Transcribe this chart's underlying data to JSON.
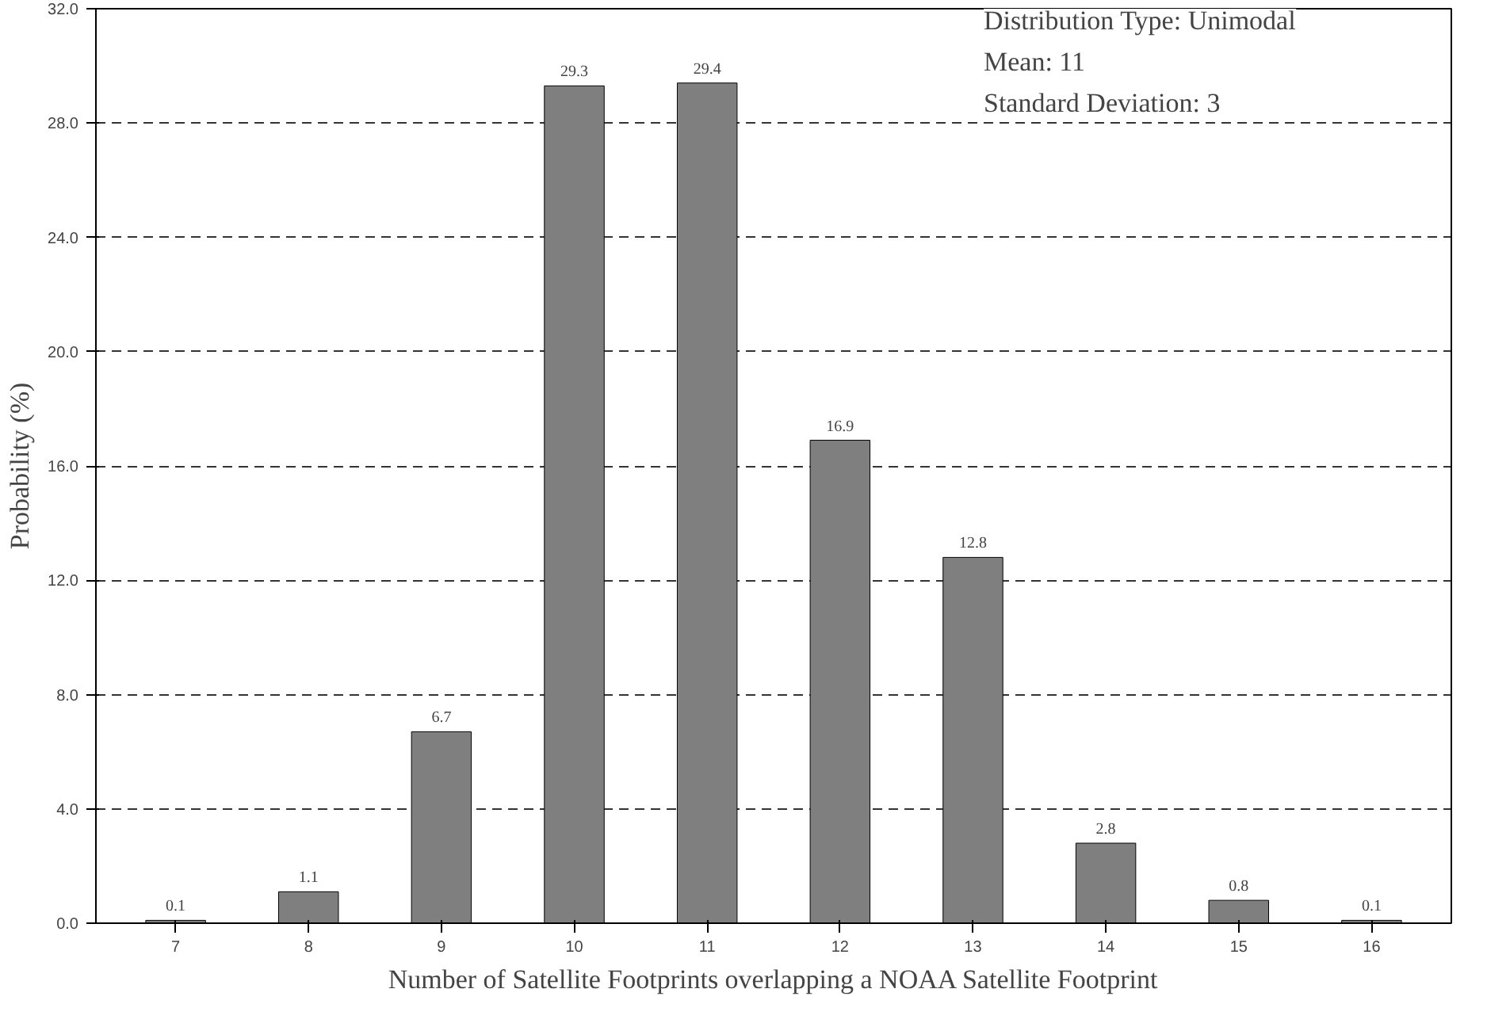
{
  "chart_data": {
    "type": "bar",
    "xlabel": "Number of Satellite Footprints overlapping a NOAA Satellite Footprint",
    "ylabel": "Probability (%)",
    "categories": [
      "7",
      "8",
      "9",
      "10",
      "11",
      "12",
      "13",
      "14",
      "15",
      "16"
    ],
    "values": [
      0.1,
      1.1,
      6.7,
      29.3,
      29.4,
      16.9,
      12.8,
      2.8,
      0.8,
      0.1
    ],
    "color": "#7f7f7f",
    "data_labels": true,
    "grid": "y",
    "line_style": "dashed",
    "ylim": [
      0,
      32
    ],
    "yticks": [
      {
        "value": 0,
        "label": "0.0"
      },
      {
        "value": 4,
        "label": "4.0"
      },
      {
        "value": 8,
        "label": "8.0"
      },
      {
        "value": 12,
        "label": "12.0"
      },
      {
        "value": 16,
        "label": "16.0"
      },
      {
        "value": 20,
        "label": "20.0"
      },
      {
        "value": 24,
        "label": "24.0"
      },
      {
        "value": 28,
        "label": "28.0"
      },
      {
        "value": 32,
        "label": "32.0"
      }
    ],
    "annotations": [
      "Distribution Type: Unimodal",
      "Mean: 11",
      "Standard Deviation: 3"
    ]
  }
}
